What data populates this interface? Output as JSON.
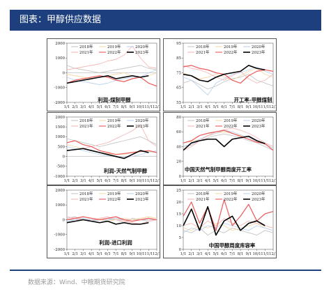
{
  "header": {
    "title": "图表：甲醇供应数据"
  },
  "footer": {
    "source": "数据来源：Wind、中粮期货研究院"
  },
  "colors": {
    "header_bg": "#1d3f7d",
    "y2018": "#c5c5c5",
    "y2019": "#f5d9a8",
    "y2020": "#bdd3ee",
    "y2021": "#f6b8b8",
    "y2022": "#ec5a5a",
    "y2023": "#000000"
  },
  "chart_data": [
    {
      "type": "line",
      "title": "利润-煤制甲醇",
      "ylim": [
        -2000,
        2000
      ],
      "yticks": [
        "2000",
        "1000",
        "0",
        "-1000",
        "-2000"
      ],
      "xticks": [
        "1/1",
        "2/1",
        "3/1",
        "4/1",
        "5/1",
        "6/1",
        "7/1",
        "8/1",
        "9/1",
        "10/1",
        "11/1",
        "12/1"
      ],
      "legend": [
        "2018年",
        "2019年",
        "2020年",
        "2021年",
        "2022年",
        "2023年"
      ],
      "series": [
        {
          "name": "2018年",
          "values": [
            500,
            300,
            200,
            100,
            0,
            100,
            200,
            300,
            400,
            500,
            300,
            200
          ]
        },
        {
          "name": "2019年",
          "values": [
            -100,
            -200,
            -300,
            -400,
            -300,
            -200,
            -100,
            0,
            -200,
            -300,
            -200,
            0
          ]
        },
        {
          "name": "2020年",
          "values": [
            -300,
            -500,
            -600,
            -700,
            -800,
            -700,
            -500,
            -400,
            -300,
            -300,
            0,
            200
          ]
        },
        {
          "name": "2021年",
          "values": [
            200,
            300,
            400,
            500,
            600,
            800,
            900,
            1200,
            1800,
            1000,
            400,
            300
          ]
        },
        {
          "name": "2022年",
          "values": [
            -700,
            -500,
            -400,
            -300,
            -200,
            -300,
            -500,
            -600,
            -400,
            -300,
            -700,
            -900
          ]
        },
        {
          "name": "2023年",
          "values": [
            -700,
            -600,
            -500,
            -400,
            -300,
            -200,
            -400,
            -300,
            -200,
            -300,
            -200,
            null
          ]
        }
      ]
    },
    {
      "type": "line",
      "title": "开工率-甲醇煤制",
      "ylim": [
        55,
        95
      ],
      "yticks": [
        "95",
        "85",
        "75",
        "65",
        "55"
      ],
      "xticks": [
        "1/1",
        "2/1",
        "3/1",
        "4/1",
        "5/1",
        "6/1",
        "7/1",
        "8/1",
        "9/1",
        "10/1",
        "11/1",
        "12/1"
      ],
      "legend": [
        "2018年",
        "2019年",
        "2020年",
        "2021年",
        "2022年",
        "2023年"
      ],
      "series": [
        {
          "name": "2018年",
          "values": [
            68,
            70,
            67,
            64,
            66,
            69,
            71,
            72,
            74,
            70,
            68,
            66
          ]
        },
        {
          "name": "2019年",
          "values": [
            75,
            73,
            71,
            72,
            74,
            72,
            70,
            73,
            76,
            78,
            74,
            72
          ]
        },
        {
          "name": "2020年",
          "values": [
            72,
            70,
            65,
            60,
            68,
            71,
            74,
            75,
            77,
            79,
            76,
            74
          ]
        },
        {
          "name": "2021年",
          "values": [
            80,
            78,
            77,
            75,
            72,
            70,
            73,
            76,
            71,
            68,
            70,
            74
          ]
        },
        {
          "name": "2022年",
          "values": [
            79,
            80,
            78,
            77,
            75,
            74,
            70,
            68,
            73,
            76,
            77,
            76
          ]
        },
        {
          "name": "2023年",
          "values": [
            74,
            73,
            70,
            69,
            72,
            74,
            75,
            76,
            80,
            78,
            77,
            null
          ]
        }
      ]
    },
    {
      "type": "line",
      "title": "利润-天然气制甲醇",
      "ylim": [
        -1000,
        2000
      ],
      "yticks": [
        "2000",
        "1500",
        "1000",
        "500",
        "0",
        "-500",
        "-1000"
      ],
      "xticks": [
        "1/1",
        "2/1",
        "3/1",
        "4/1",
        "5/1",
        "6/1",
        "7/1",
        "8/1",
        "9/1",
        "10/1",
        "11/1",
        "12/1"
      ],
      "legend": [
        "2018年",
        "2019年",
        "2020年",
        "2021年",
        "2022年",
        "2023年"
      ],
      "series": [
        {
          "name": "2018年",
          "values": [
            900,
            800,
            700,
            600,
            500,
            600,
            700,
            800,
            900,
            1000,
            800,
            600
          ]
        },
        {
          "name": "2019年",
          "values": [
            600,
            500,
            400,
            300,
            200,
            150,
            100,
            100,
            200,
            300,
            250,
            200
          ]
        },
        {
          "name": "2020年",
          "values": [
            500,
            400,
            300,
            200,
            100,
            50,
            0,
            -50,
            0,
            100,
            200,
            300
          ]
        },
        {
          "name": "2021年",
          "values": [
            300,
            350,
            400,
            500,
            600,
            700,
            900,
            1100,
            1300,
            1600,
            800,
            500
          ]
        },
        {
          "name": "2022年",
          "values": [
            700,
            800,
            600,
            500,
            300,
            200,
            100,
            150,
            200,
            250,
            300,
            200
          ]
        },
        {
          "name": "2023年",
          "values": [
            300,
            350,
            400,
            300,
            200,
            100,
            0,
            -100,
            100,
            300,
            200,
            null
          ]
        }
      ]
    },
    {
      "type": "line",
      "title": "中国天然气制甲醇周度开工率",
      "ylim": [
        0,
        80
      ],
      "yticks": [
        "80",
        "60",
        "40",
        "20",
        "0"
      ],
      "xticks": [
        "1/1",
        "2/1",
        "3/1",
        "4/1",
        "5/1",
        "6/1",
        "7/1",
        "8/1",
        "9/1",
        "10/1",
        "11/1",
        "12/1"
      ],
      "legend": [
        "2018年",
        "2019年",
        "2020年",
        "2021年",
        "2022年",
        "2023年"
      ],
      "series": [
        {
          "name": "2018年",
          "values": [
            40,
            42,
            48,
            52,
            55,
            57,
            55,
            52,
            48,
            45,
            40,
            35
          ]
        },
        {
          "name": "2019年",
          "values": [
            45,
            47,
            50,
            54,
            58,
            60,
            58,
            55,
            52,
            48,
            44,
            40
          ]
        },
        {
          "name": "2020年",
          "values": [
            40,
            44,
            50,
            55,
            58,
            62,
            60,
            56,
            52,
            48,
            43,
            38
          ]
        },
        {
          "name": "2021年",
          "values": [
            35,
            40,
            48,
            55,
            60,
            63,
            65,
            62,
            58,
            52,
            45,
            40
          ]
        },
        {
          "name": "2022年",
          "values": [
            45,
            48,
            55,
            58,
            60,
            62,
            58,
            54,
            50,
            46,
            44,
            35
          ]
        },
        {
          "name": "2023年",
          "values": [
            35,
            45,
            48,
            50,
            50,
            40,
            50,
            52,
            54,
            48,
            44,
            null
          ]
        }
      ]
    },
    {
      "type": "line",
      "title": "利润-进口利润",
      "ylim": [
        -2000,
        2000
      ],
      "yticks": [
        "2000",
        "1000",
        "0",
        "-1000",
        "-2000"
      ],
      "xticks": [
        "1/1",
        "2/1",
        "3/1",
        "4/1",
        "5/1",
        "6/1",
        "7/1",
        "8/1",
        "9/1",
        "10/1",
        "11/1",
        "12/1"
      ],
      "legend": [
        "2018年",
        "2019年",
        "2020年",
        "2021年",
        "2022年",
        "2023年"
      ],
      "series": [
        {
          "name": "2018年",
          "values": [
            100,
            200,
            0,
            -100,
            0,
            100,
            0,
            -200,
            100,
            0,
            -100,
            0
          ]
        },
        {
          "name": "2019年",
          "values": [
            0,
            100,
            200,
            100,
            0,
            -100,
            0,
            100,
            0,
            100,
            200,
            100
          ]
        },
        {
          "name": "2020年",
          "values": [
            -100,
            0,
            100,
            0,
            -200,
            0,
            100,
            0,
            -100,
            0,
            100,
            0
          ]
        },
        {
          "name": "2021年",
          "values": [
            200,
            100,
            0,
            -100,
            100,
            200,
            0,
            -100,
            -200,
            -300,
            -100,
            0
          ]
        },
        {
          "name": "2022年",
          "values": [
            0,
            100,
            200,
            100,
            0,
            100,
            200,
            0,
            -100,
            0,
            100,
            0
          ]
        },
        {
          "name": "2023年",
          "values": [
            -200,
            -100,
            0,
            -100,
            -200,
            -100,
            -300,
            -200,
            -300,
            -300,
            -200,
            null
          ]
        }
      ]
    },
    {
      "type": "line",
      "title": "中国甲醇周度库容率",
      "ylim": [
        0,
        25
      ],
      "yticks": [
        "25",
        "20",
        "15",
        "10",
        "5",
        "0"
      ],
      "xticks": [
        "1/1",
        "2/1",
        "3/1",
        "4/1",
        "5/1",
        "6/1",
        "7/1",
        "8/1",
        "9/1",
        "10/1",
        "11/1",
        "12/1"
      ],
      "legend": [
        "2018年",
        "2019年",
        "2020年",
        "2021年",
        "2022年",
        "2023年"
      ],
      "series": [
        {
          "name": "2018年",
          "values": [
            8,
            7,
            9,
            6,
            8,
            7,
            9,
            8,
            7,
            6,
            8,
            7
          ]
        },
        {
          "name": "2019年",
          "values": [
            9,
            8,
            10,
            9,
            11,
            10,
            8,
            9,
            10,
            11,
            9,
            8
          ]
        },
        {
          "name": "2020年",
          "values": [
            7,
            9,
            8,
            10,
            9,
            11,
            10,
            9,
            8,
            10,
            9,
            8
          ]
        },
        {
          "name": "2021年",
          "values": [
            10,
            11,
            9,
            12,
            10,
            13,
            11,
            10,
            12,
            11,
            10,
            9
          ]
        },
        {
          "name": "2022年",
          "values": [
            14,
            20,
            11,
            18,
            8,
            21,
            10,
            14,
            19,
            12,
            15,
            16
          ]
        },
        {
          "name": "2023年",
          "values": [
            10,
            17,
            8,
            18,
            6,
            12,
            14,
            8,
            11,
            12,
            10,
            null
          ]
        }
      ]
    }
  ]
}
